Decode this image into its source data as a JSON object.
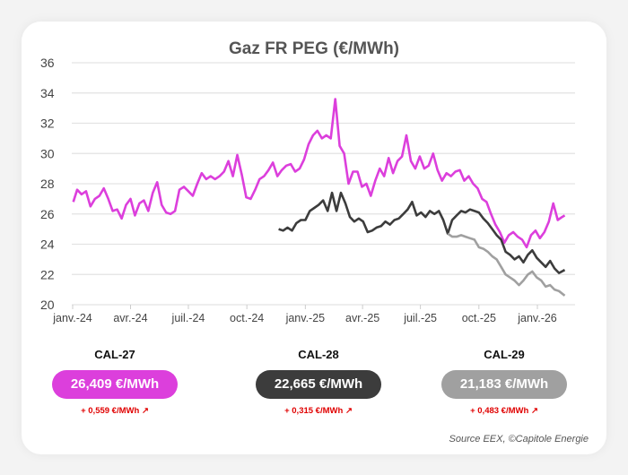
{
  "chart_data": {
    "type": "line",
    "title": "Gaz FR PEG (€/MWh)",
    "xlabel": "",
    "ylabel": "",
    "ylim": [
      20,
      36
    ],
    "yticks": [
      20,
      22,
      24,
      26,
      28,
      30,
      32,
      34,
      36
    ],
    "xticks": [
      {
        "date": "2024-01-01",
        "label": "janv.-24"
      },
      {
        "date": "2024-04-01",
        "label": "avr.-24"
      },
      {
        "date": "2024-07-01",
        "label": "juil.-24"
      },
      {
        "date": "2024-10-01",
        "label": "oct.-24"
      },
      {
        "date": "2025-01-01",
        "label": "janv.-25"
      },
      {
        "date": "2025-04-01",
        "label": "avr.-25"
      },
      {
        "date": "2025-07-01",
        "label": "juil.-25"
      },
      {
        "date": "2025-10-01",
        "label": "oct.-25"
      },
      {
        "date": "2026-01-01",
        "label": "janv.-26"
      }
    ],
    "grid": "horizontal",
    "series": [
      {
        "id": "CAL-27",
        "color": "#dc3fdc",
        "points": [
          [
            "2024-01-02",
            26.8
          ],
          [
            "2024-01-08",
            27.6
          ],
          [
            "2024-01-15",
            27.3
          ],
          [
            "2024-01-22",
            27.5
          ],
          [
            "2024-01-29",
            26.5
          ],
          [
            "2024-02-05",
            27.0
          ],
          [
            "2024-02-12",
            27.2
          ],
          [
            "2024-02-19",
            27.7
          ],
          [
            "2024-02-26",
            27.0
          ],
          [
            "2024-03-04",
            26.2
          ],
          [
            "2024-03-11",
            26.3
          ],
          [
            "2024-03-18",
            25.7
          ],
          [
            "2024-03-25",
            26.6
          ],
          [
            "2024-04-01",
            27.0
          ],
          [
            "2024-04-08",
            25.9
          ],
          [
            "2024-04-15",
            26.7
          ],
          [
            "2024-04-22",
            26.9
          ],
          [
            "2024-04-29",
            26.2
          ],
          [
            "2024-05-06",
            27.4
          ],
          [
            "2024-05-13",
            28.1
          ],
          [
            "2024-05-20",
            26.6
          ],
          [
            "2024-05-27",
            26.1
          ],
          [
            "2024-06-03",
            26.0
          ],
          [
            "2024-06-10",
            26.2
          ],
          [
            "2024-06-17",
            27.6
          ],
          [
            "2024-06-24",
            27.8
          ],
          [
            "2024-07-01",
            27.5
          ],
          [
            "2024-07-08",
            27.2
          ],
          [
            "2024-07-15",
            28.0
          ],
          [
            "2024-07-22",
            28.7
          ],
          [
            "2024-07-29",
            28.3
          ],
          [
            "2024-08-05",
            28.5
          ],
          [
            "2024-08-12",
            28.3
          ],
          [
            "2024-08-19",
            28.5
          ],
          [
            "2024-08-26",
            28.8
          ],
          [
            "2024-09-02",
            29.5
          ],
          [
            "2024-09-09",
            28.5
          ],
          [
            "2024-09-16",
            29.9
          ],
          [
            "2024-09-23",
            28.6
          ],
          [
            "2024-09-30",
            27.1
          ],
          [
            "2024-10-07",
            27.0
          ],
          [
            "2024-10-14",
            27.6
          ],
          [
            "2024-10-21",
            28.3
          ],
          [
            "2024-10-28",
            28.5
          ],
          [
            "2024-11-04",
            28.9
          ],
          [
            "2024-11-11",
            29.4
          ],
          [
            "2024-11-18",
            28.5
          ],
          [
            "2024-11-25",
            28.9
          ],
          [
            "2024-12-02",
            29.2
          ],
          [
            "2024-12-09",
            29.3
          ],
          [
            "2024-12-16",
            28.8
          ],
          [
            "2024-12-23",
            29.0
          ],
          [
            "2024-12-30",
            29.6
          ],
          [
            "2025-01-06",
            30.6
          ],
          [
            "2025-01-13",
            31.2
          ],
          [
            "2025-01-20",
            31.5
          ],
          [
            "2025-01-27",
            31.0
          ],
          [
            "2025-02-03",
            31.2
          ],
          [
            "2025-02-10",
            31.0
          ],
          [
            "2025-02-17",
            33.6
          ],
          [
            "2025-02-24",
            30.5
          ],
          [
            "2025-03-03",
            30.0
          ],
          [
            "2025-03-10",
            28.0
          ],
          [
            "2025-03-17",
            28.8
          ],
          [
            "2025-03-24",
            28.8
          ],
          [
            "2025-03-31",
            27.8
          ],
          [
            "2025-04-07",
            28.0
          ],
          [
            "2025-04-14",
            27.2
          ],
          [
            "2025-04-21",
            28.2
          ],
          [
            "2025-04-28",
            29.0
          ],
          [
            "2025-05-05",
            28.5
          ],
          [
            "2025-05-12",
            29.7
          ],
          [
            "2025-05-19",
            28.7
          ],
          [
            "2025-05-26",
            29.5
          ],
          [
            "2025-06-02",
            29.8
          ],
          [
            "2025-06-09",
            31.2
          ],
          [
            "2025-06-16",
            29.5
          ],
          [
            "2025-06-23",
            29.0
          ],
          [
            "2025-06-30",
            29.8
          ],
          [
            "2025-07-07",
            29.0
          ],
          [
            "2025-07-14",
            29.2
          ],
          [
            "2025-07-21",
            30.0
          ],
          [
            "2025-07-28",
            28.9
          ],
          [
            "2025-08-04",
            28.2
          ],
          [
            "2025-08-11",
            28.7
          ],
          [
            "2025-08-18",
            28.5
          ],
          [
            "2025-08-25",
            28.8
          ],
          [
            "2025-09-01",
            28.9
          ],
          [
            "2025-09-08",
            28.2
          ],
          [
            "2025-09-15",
            28.5
          ],
          [
            "2025-09-22",
            28.0
          ],
          [
            "2025-09-29",
            27.7
          ],
          [
            "2025-10-06",
            27.0
          ],
          [
            "2025-10-13",
            26.8
          ],
          [
            "2025-10-20",
            26.0
          ],
          [
            "2025-10-27",
            25.3
          ],
          [
            "2025-11-03",
            24.8
          ],
          [
            "2025-11-10",
            24.1
          ],
          [
            "2025-11-17",
            24.6
          ],
          [
            "2025-11-24",
            24.8
          ],
          [
            "2025-12-01",
            24.5
          ],
          [
            "2025-12-08",
            24.3
          ],
          [
            "2025-12-15",
            23.8
          ],
          [
            "2025-12-22",
            24.6
          ],
          [
            "2025-12-29",
            24.9
          ],
          [
            "2026-01-05",
            24.4
          ],
          [
            "2026-01-12",
            24.8
          ],
          [
            "2026-01-19",
            25.5
          ],
          [
            "2026-01-26",
            26.7
          ],
          [
            "2026-02-02",
            25.6
          ],
          [
            "2026-02-09",
            25.8
          ],
          [
            "2026-02-13",
            25.9
          ]
        ]
      },
      {
        "id": "CAL-28",
        "color": "#3c3c3c",
        "points": [
          [
            "2024-11-20",
            25.0
          ],
          [
            "2024-11-27",
            24.9
          ],
          [
            "2024-12-04",
            25.1
          ],
          [
            "2024-12-11",
            24.9
          ],
          [
            "2024-12-18",
            25.4
          ],
          [
            "2024-12-25",
            25.6
          ],
          [
            "2025-01-01",
            25.6
          ],
          [
            "2025-01-08",
            26.2
          ],
          [
            "2025-01-15",
            26.4
          ],
          [
            "2025-01-22",
            26.6
          ],
          [
            "2025-01-29",
            26.9
          ],
          [
            "2025-02-05",
            26.2
          ],
          [
            "2025-02-12",
            27.4
          ],
          [
            "2025-02-19",
            26.2
          ],
          [
            "2025-02-26",
            27.4
          ],
          [
            "2025-03-05",
            26.7
          ],
          [
            "2025-03-12",
            25.8
          ],
          [
            "2025-03-19",
            25.5
          ],
          [
            "2025-03-26",
            25.7
          ],
          [
            "2025-04-02",
            25.5
          ],
          [
            "2025-04-09",
            24.8
          ],
          [
            "2025-04-16",
            24.9
          ],
          [
            "2025-04-23",
            25.1
          ],
          [
            "2025-04-30",
            25.2
          ],
          [
            "2025-05-07",
            25.5
          ],
          [
            "2025-05-14",
            25.3
          ],
          [
            "2025-05-21",
            25.6
          ],
          [
            "2025-05-28",
            25.7
          ],
          [
            "2025-06-04",
            26.0
          ],
          [
            "2025-06-11",
            26.3
          ],
          [
            "2025-06-18",
            26.8
          ],
          [
            "2025-06-25",
            25.9
          ],
          [
            "2025-07-02",
            26.1
          ],
          [
            "2025-07-09",
            25.8
          ],
          [
            "2025-07-16",
            26.2
          ],
          [
            "2025-07-23",
            26.0
          ],
          [
            "2025-07-30",
            26.2
          ],
          [
            "2025-08-06",
            25.6
          ],
          [
            "2025-08-13",
            24.7
          ],
          [
            "2025-08-20",
            25.6
          ],
          [
            "2025-08-27",
            25.9
          ],
          [
            "2025-09-03",
            26.2
          ],
          [
            "2025-09-10",
            26.1
          ],
          [
            "2025-09-17",
            26.3
          ],
          [
            "2025-09-24",
            26.2
          ],
          [
            "2025-10-01",
            26.1
          ],
          [
            "2025-10-08",
            25.7
          ],
          [
            "2025-10-15",
            25.4
          ],
          [
            "2025-10-22",
            25.0
          ],
          [
            "2025-10-29",
            24.6
          ],
          [
            "2025-11-05",
            24.3
          ],
          [
            "2025-11-12",
            23.5
          ],
          [
            "2025-11-19",
            23.3
          ],
          [
            "2025-11-26",
            23.0
          ],
          [
            "2025-12-03",
            23.2
          ],
          [
            "2025-12-10",
            22.8
          ],
          [
            "2025-12-17",
            23.3
          ],
          [
            "2025-12-24",
            23.6
          ],
          [
            "2025-12-31",
            23.1
          ],
          [
            "2026-01-07",
            22.8
          ],
          [
            "2026-01-14",
            22.5
          ],
          [
            "2026-01-21",
            22.9
          ],
          [
            "2026-01-28",
            22.4
          ],
          [
            "2026-02-04",
            22.1
          ],
          [
            "2026-02-13",
            22.3
          ]
        ]
      },
      {
        "id": "CAL-29",
        "color": "#a0a0a0",
        "points": [
          [
            "2025-08-13",
            24.7
          ],
          [
            "2025-08-20",
            24.5
          ],
          [
            "2025-08-27",
            24.5
          ],
          [
            "2025-09-03",
            24.6
          ],
          [
            "2025-09-10",
            24.5
          ],
          [
            "2025-09-17",
            24.4
          ],
          [
            "2025-09-24",
            24.3
          ],
          [
            "2025-10-01",
            23.8
          ],
          [
            "2025-10-08",
            23.7
          ],
          [
            "2025-10-15",
            23.5
          ],
          [
            "2025-10-22",
            23.2
          ],
          [
            "2025-10-29",
            23.0
          ],
          [
            "2025-11-05",
            22.5
          ],
          [
            "2025-11-12",
            22.0
          ],
          [
            "2025-11-19",
            21.8
          ],
          [
            "2025-11-26",
            21.6
          ],
          [
            "2025-12-03",
            21.3
          ],
          [
            "2025-12-10",
            21.6
          ],
          [
            "2025-12-17",
            22.0
          ],
          [
            "2025-12-24",
            22.2
          ],
          [
            "2025-12-31",
            21.8
          ],
          [
            "2026-01-07",
            21.6
          ],
          [
            "2026-01-14",
            21.2
          ],
          [
            "2026-01-21",
            21.3
          ],
          [
            "2026-01-28",
            21.0
          ],
          [
            "2026-02-04",
            20.9
          ],
          [
            "2026-02-13",
            20.6
          ]
        ]
      }
    ]
  },
  "contracts": [
    {
      "label": "CAL-27",
      "price": "26,409 €/MWh",
      "change": "+ 0,559 €/MWh",
      "trend_icon": "arrow-up-right",
      "color": "#dc3fdc"
    },
    {
      "label": "CAL-28",
      "price": "22,665 €/MWh",
      "change": "+ 0,315 €/MWh",
      "trend_icon": "arrow-up-right",
      "color": "#3c3c3c"
    },
    {
      "label": "CAL-29",
      "price": "21,183 €/MWh",
      "change": "+ 0,483 €/MWh",
      "trend_icon": "arrow-up-right",
      "color": "#a0a0a0"
    }
  ],
  "source": "Source EEX, ©Capitole Energie"
}
